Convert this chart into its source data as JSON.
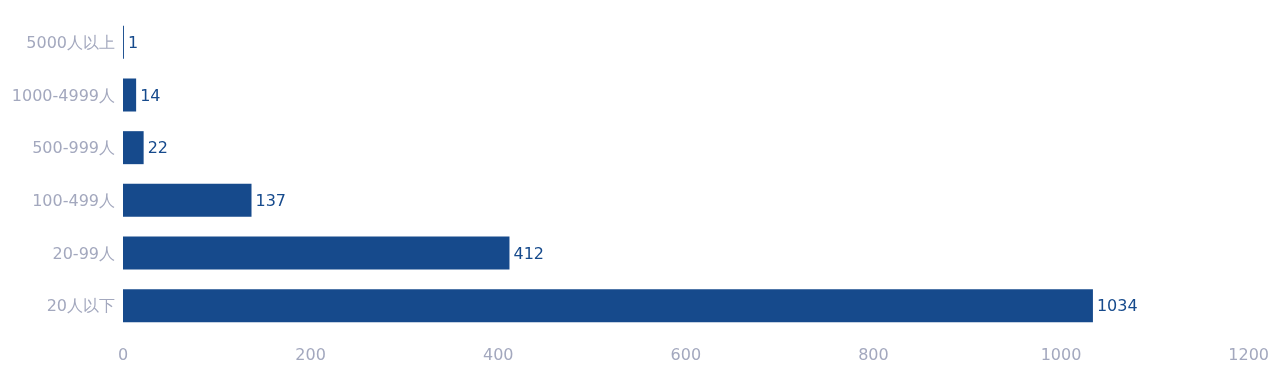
{
  "chart_data": {
    "type": "bar",
    "orientation": "horizontal",
    "categories": [
      "5000人以上",
      "1000-4999人",
      "500-999人",
      "100-499人",
      "20-99人",
      "20人以下"
    ],
    "values": [
      1,
      14,
      22,
      137,
      412,
      1034
    ],
    "color": "#164a8c",
    "xlim": [
      0,
      1200
    ],
    "xticks": [
      0,
      200,
      400,
      600,
      800,
      1000,
      1200
    ],
    "grid": false,
    "data_labels": true
  }
}
